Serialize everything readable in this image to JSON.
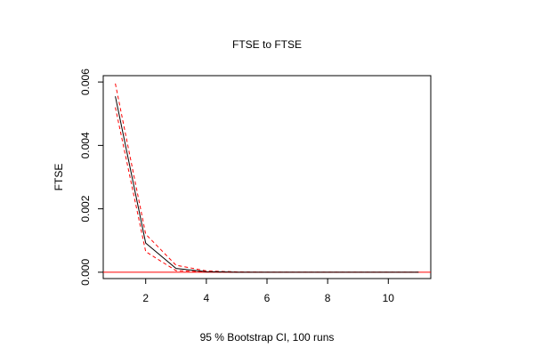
{
  "chart_data": {
    "type": "line",
    "title": "FTSE to FTSE",
    "xlabel": "95 % Bootstrap CI,  100 runs",
    "ylabel": "FTSE",
    "xlim": [
      0.6,
      11.4
    ],
    "ylim": [
      -0.0002,
      0.0062
    ],
    "x_ticks": [
      2,
      4,
      6,
      8,
      10
    ],
    "y_ticks": [
      0.0,
      0.002,
      0.004,
      0.006
    ],
    "y_tick_labels": [
      "0.000",
      "0.002",
      "0.004",
      "0.006"
    ],
    "grid": false,
    "reference_line": {
      "y": 0,
      "color": "#ff0000"
    },
    "x": [
      1,
      2,
      3,
      4,
      5,
      6,
      7,
      8,
      9,
      10,
      11
    ],
    "series": [
      {
        "role": "estimate",
        "color": "#000000",
        "dash": false,
        "values": [
          0.00555,
          0.00092,
          0.00012,
          2e-05,
          0,
          0,
          0,
          0,
          0,
          0,
          0
        ]
      },
      {
        "role": "upper",
        "color": "#ff0000",
        "dash": true,
        "values": [
          0.00595,
          0.0012,
          0.00022,
          4e-05,
          1e-05,
          0,
          0,
          0,
          0,
          0,
          0
        ]
      },
      {
        "role": "lower",
        "color": "#ff0000",
        "dash": true,
        "values": [
          0.0052,
          0.00065,
          5e-05,
          1e-05,
          0,
          0,
          0,
          0,
          0,
          0,
          0
        ]
      }
    ]
  }
}
